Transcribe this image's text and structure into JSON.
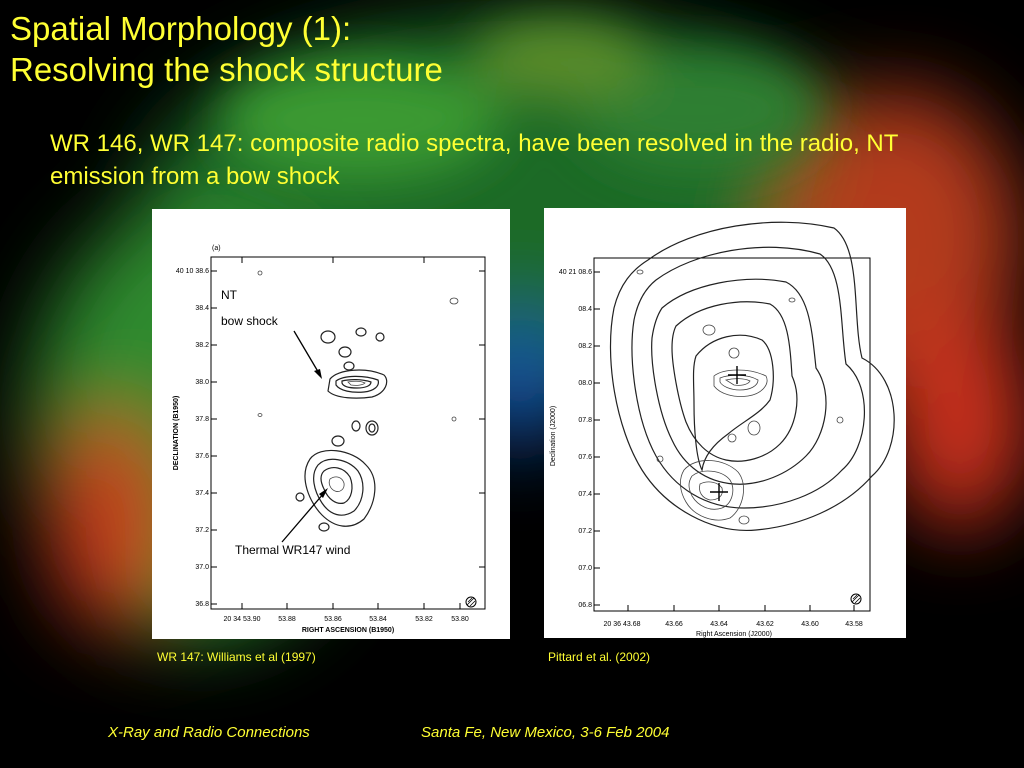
{
  "slide": {
    "title_line1": "Spatial Morphology (1):",
    "title_line2": "Resolving the shock structure",
    "subtitle": "WR 146, WR 147: composite radio spectra, have been resolved in the radio, NT emission from a bow shock",
    "footer_left": "X-Ray and Radio Connections",
    "footer_right": "Santa Fe, New Mexico, 3-6 Feb 2004",
    "background_colors": {
      "base": "#000000",
      "green": "#2e7d32",
      "red": "#e53935",
      "blue": "#1565c0"
    }
  },
  "left_figure": {
    "caption": "WR 147: Williams et al (1997)",
    "panel_label": "(a)",
    "annotation_nt": "NT",
    "annotation_bow": "bow shock",
    "annotation_thermal": "Thermal WR147 wind",
    "ylabel": "DECLINATION (B1950)",
    "xlabel": "RIGHT ASCENSION (B1950)",
    "yticks": [
      "40 10 38.6",
      "38.4",
      "38.2",
      "38.0",
      "37.8",
      "37.6",
      "37.4",
      "37.2",
      "37.0",
      "36.8"
    ],
    "xticks": [
      "20 34 53.90",
      "53.88",
      "53.86",
      "53.84",
      "53.82",
      "53.80"
    ]
  },
  "right_figure": {
    "caption": "Pittard et al. (2002)",
    "ylabel": "Declination (J2000)",
    "xlabel": "Right Ascension (J2000)",
    "yticks": [
      "40 21 08.6",
      "08.4",
      "08.2",
      "08.0",
      "07.8",
      "07.6",
      "07.4",
      "07.2",
      "07.0",
      "06.8"
    ],
    "xticks": [
      "20 36 43.68",
      "43.66",
      "43.64",
      "43.62",
      "43.60",
      "43.58"
    ]
  }
}
